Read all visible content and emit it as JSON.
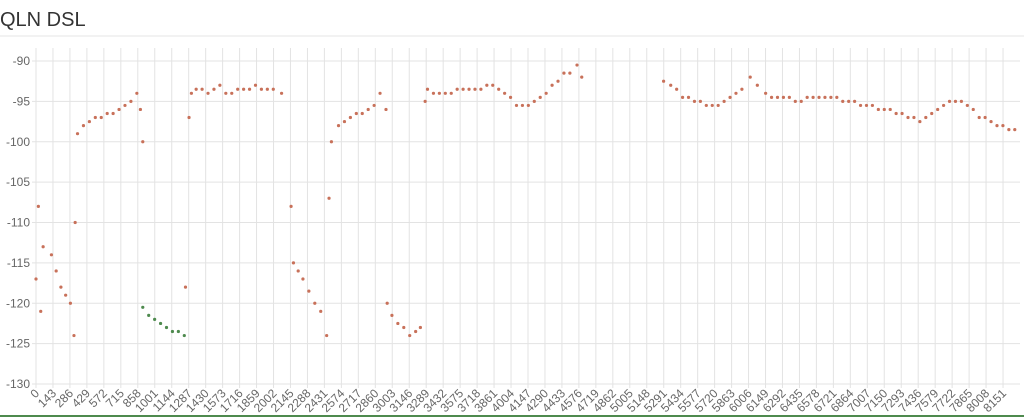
{
  "chart_data": {
    "type": "scatter",
    "title": "QLN DSL",
    "xlim": [
      0,
      8294
    ],
    "ylim": [
      -130,
      -90
    ],
    "xticks": [
      0,
      143,
      286,
      429,
      572,
      715,
      858,
      1001,
      1144,
      1287,
      1430,
      1573,
      1716,
      1859,
      2002,
      2145,
      2288,
      2431,
      2574,
      2717,
      2860,
      3003,
      3146,
      3289,
      3432,
      3575,
      3718,
      3861,
      4004,
      4147,
      4290,
      4433,
      4576,
      4719,
      4862,
      5005,
      5148,
      5291,
      5434,
      5577,
      5720,
      5863,
      6006,
      6149,
      6292,
      6435,
      6578,
      6721,
      6864,
      7007,
      7150,
      7293,
      7436,
      7579,
      7722,
      7865,
      8008,
      8151
    ],
    "yticks": [
      -90,
      -95,
      -100,
      -105,
      -110,
      -115,
      -120,
      -125,
      -130
    ],
    "grid": true,
    "series": [
      {
        "color": "#c8715a",
        "x": [
          0,
          20,
          40,
          60,
          130,
          170,
          210,
          250,
          290,
          320,
          330,
          350,
          400,
          450,
          500,
          550,
          600,
          650,
          700,
          750,
          800,
          850,
          880,
          900,
          1260,
          1290,
          1310,
          1350,
          1400,
          1450,
          1500,
          1550,
          1600,
          1650,
          1700,
          1750,
          1800,
          1850,
          1900,
          1950,
          2000,
          2070,
          2150,
          2170,
          2210,
          2250,
          2300,
          2350,
          2400,
          2450,
          2470,
          2490,
          2550,
          2600,
          2650,
          2700,
          2750,
          2800,
          2850,
          2900,
          2950,
          2960,
          3000,
          3050,
          3100,
          3150,
          3200,
          3240,
          3280,
          3300,
          3350,
          3400,
          3450,
          3500,
          3550,
          3600,
          3650,
          3700,
          3750,
          3800,
          3850,
          3900,
          3950,
          4000,
          4050,
          4100,
          4150,
          4200,
          4250,
          4300,
          4350,
          4400,
          4450,
          4500,
          4560,
          4600,
          5290,
          5350,
          5400,
          5450,
          5500,
          5550,
          5600,
          5650,
          5700,
          5750,
          5800,
          5850,
          5900,
          5950,
          6020,
          6080,
          6150,
          6200,
          6250,
          6300,
          6350,
          6400,
          6450,
          6500,
          6550,
          6600,
          6650,
          6700,
          6750,
          6800,
          6850,
          6900,
          6950,
          7000,
          7050,
          7100,
          7150,
          7200,
          7250,
          7300,
          7350,
          7400,
          7450,
          7500,
          7550,
          7600,
          7650,
          7700,
          7750,
          7800,
          7850,
          7900,
          7950,
          8000,
          8050,
          8100,
          8150,
          8200,
          8250
        ],
        "values": [
          -117,
          -108,
          -121,
          -113,
          -114,
          -116,
          -118,
          -119,
          -120,
          -124,
          -110,
          -99,
          -98,
          -97.5,
          -97,
          -97,
          -96.5,
          -96.5,
          -96,
          -95.5,
          -95,
          -94,
          -96,
          -100,
          -118,
          -97,
          -94,
          -93.5,
          -93.5,
          -94,
          -93.5,
          -93,
          -94,
          -94,
          -93.5,
          -93.5,
          -93.5,
          -93,
          -93.5,
          -93.5,
          -93.5,
          -94,
          -108,
          -115,
          -116,
          -117,
          -118.5,
          -120,
          -121,
          -124,
          -107,
          -100,
          -98,
          -97.5,
          -97,
          -96.5,
          -96.5,
          -96,
          -95.5,
          -94,
          -96,
          -120,
          -121.5,
          -122.5,
          -123,
          -124,
          -123.5,
          -123,
          -95,
          -93.5,
          -94,
          -94,
          -94,
          -94,
          -93.5,
          -93.5,
          -93.5,
          -93.5,
          -93.5,
          -93,
          -93,
          -93.5,
          -94,
          -94.5,
          -95.5,
          -95.5,
          -95.5,
          -95,
          -94.5,
          -94,
          -93,
          -92.5,
          -91.5,
          -91.5,
          -90.5,
          -92,
          -92.5,
          -93,
          -93.5,
          -94.5,
          -94.5,
          -95,
          -95,
          -95.5,
          -95.5,
          -95.5,
          -95,
          -94.5,
          -94,
          -93.5,
          -92,
          -93,
          -94,
          -94.5,
          -94.5,
          -94.5,
          -94.5,
          -95,
          -95,
          -94.5,
          -94.5,
          -94.5,
          -94.5,
          -94.5,
          -94.5,
          -95,
          -95,
          -95,
          -95.5,
          -95.5,
          -95.5,
          -96,
          -96,
          -96,
          -96.5,
          -96.5,
          -97,
          -97,
          -97.5,
          -97,
          -96.5,
          -96,
          -95.5,
          -95,
          -95,
          -95,
          -95.5,
          -96,
          -97,
          -97,
          -97.5,
          -98,
          -98,
          -98.5,
          -98.5
        ]
      },
      {
        "color": "#4e8a4e",
        "x": [
          900,
          950,
          1000,
          1050,
          1100,
          1150,
          1200,
          1250
        ],
        "values": [
          -120.5,
          -121.5,
          -122,
          -122.5,
          -123,
          -123.5,
          -123.5,
          -124
        ]
      }
    ]
  }
}
